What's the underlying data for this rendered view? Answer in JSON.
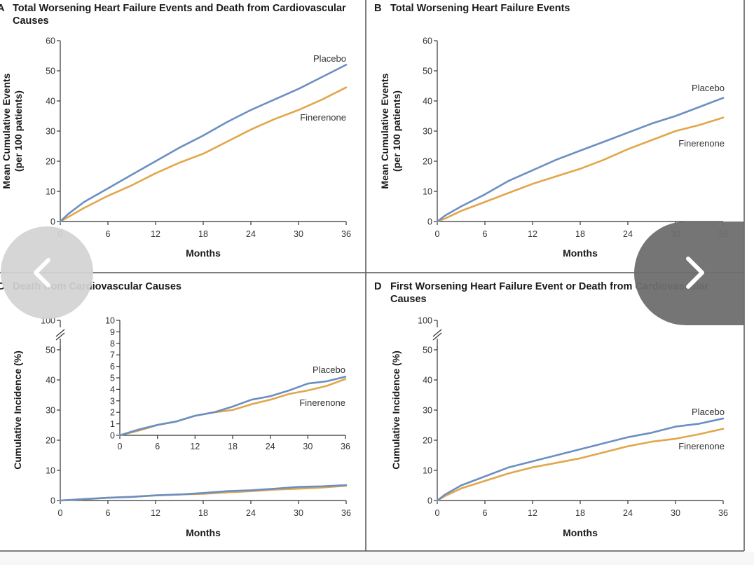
{
  "chart_data": [
    {
      "panel": "A",
      "type": "line",
      "title_lines": [
        "Total Worsening Heart Failure Events and Death from Cardiovascular",
        "Causes"
      ],
      "xlabel": "Months",
      "ylabel_lines": [
        "Mean Cumulative Events",
        "(per 100 patients)"
      ],
      "xticks": [
        "0",
        "6",
        "12",
        "18",
        "24",
        "30",
        "36"
      ],
      "yticks": [
        "0",
        "10",
        "20",
        "30",
        "40",
        "50",
        "60"
      ],
      "xlim": [
        0,
        36
      ],
      "ylim": [
        0,
        60
      ],
      "series": [
        {
          "name": "Placebo",
          "color": "#6b8fc2",
          "x": [
            0,
            1,
            3,
            6,
            9,
            12,
            15,
            18,
            21,
            24,
            27,
            30,
            33,
            36
          ],
          "y": [
            0,
            2.5,
            6.5,
            11,
            15.5,
            20,
            24.5,
            28.5,
            33,
            37,
            40.5,
            44,
            48,
            52
          ]
        },
        {
          "name": "Finerenone",
          "color": "#e2a64b",
          "x": [
            0,
            1,
            3,
            6,
            9,
            12,
            15,
            18,
            21,
            24,
            27,
            30,
            33,
            36
          ],
          "y": [
            0,
            1.5,
            4.5,
            8.5,
            12,
            16,
            19.5,
            22.5,
            26.5,
            30.5,
            34,
            37,
            40.5,
            44.5
          ]
        }
      ]
    },
    {
      "panel": "B",
      "type": "line",
      "title_lines": [
        "Total Worsening Heart Failure Events"
      ],
      "xlabel": "Months",
      "ylabel_lines": [
        "Mean Cumulative Events",
        "(per 100 patients)"
      ],
      "xticks": [
        "0",
        "6",
        "12",
        "18",
        "24",
        "30",
        "36"
      ],
      "yticks": [
        "0",
        "10",
        "20",
        "30",
        "40",
        "50",
        "60"
      ],
      "xlim": [
        0,
        36
      ],
      "ylim": [
        0,
        60
      ],
      "series": [
        {
          "name": "Placebo",
          "color": "#6b8fc2",
          "x": [
            0,
            1,
            3,
            6,
            9,
            12,
            15,
            18,
            21,
            24,
            27,
            30,
            33,
            36
          ],
          "y": [
            0,
            2,
            5,
            9,
            13.5,
            17,
            20.5,
            23.5,
            26.5,
            29.5,
            32.5,
            35,
            38,
            41
          ]
        },
        {
          "name": "Finerenone",
          "color": "#e2a64b",
          "x": [
            0,
            1,
            3,
            6,
            9,
            12,
            15,
            18,
            21,
            24,
            27,
            30,
            33,
            36
          ],
          "y": [
            0,
            1,
            3.5,
            6.5,
            9.5,
            12.5,
            15,
            17.5,
            20.5,
            24,
            27,
            30,
            32,
            34.5
          ]
        }
      ]
    },
    {
      "panel": "C",
      "type": "line",
      "title_lines": [
        "Death from Cardiovascular Causes"
      ],
      "xlabel": "Months",
      "ylabel_lines": [
        "Cumulative Incidence (%)"
      ],
      "xticks": [
        "0",
        "6",
        "12",
        "18",
        "24",
        "30",
        "36"
      ],
      "yticks": [
        "0",
        "10",
        "20",
        "30",
        "40",
        "50"
      ],
      "ytop_label": "100",
      "xlim": [
        0,
        36
      ],
      "ylim": [
        0,
        50
      ],
      "series": [
        {
          "name": "Placebo",
          "color": "#6b8fc2",
          "x": [
            0,
            3,
            6,
            9,
            12,
            15,
            18,
            21,
            24,
            27,
            30,
            33,
            36
          ],
          "y": [
            0,
            0.5,
            0.9,
            1.2,
            1.7,
            2.0,
            2.5,
            3.1,
            3.4,
            3.9,
            4.5,
            4.7,
            5.1
          ]
        },
        {
          "name": "Finerenone",
          "color": "#e2a64b",
          "x": [
            0,
            3,
            6,
            9,
            12,
            15,
            18,
            21,
            24,
            27,
            30,
            33,
            36
          ],
          "y": [
            0,
            0.4,
            0.9,
            1.2,
            1.7,
            2.0,
            2.2,
            2.7,
            3.1,
            3.6,
            3.9,
            4.3,
            4.9
          ]
        }
      ],
      "inset": {
        "xticks": [
          "0",
          "6",
          "12",
          "18",
          "24",
          "30",
          "36"
        ],
        "yticks": [
          "0",
          "1",
          "2",
          "3",
          "4",
          "5",
          "6",
          "7",
          "8",
          "9",
          "10"
        ],
        "xlim": [
          0,
          36
        ],
        "ylim": [
          0,
          10
        ]
      }
    },
    {
      "panel": "D",
      "type": "line",
      "title_lines": [
        "First Worsening Heart Failure Event or Death from Cardiovascular",
        "Causes"
      ],
      "xlabel": "Months",
      "ylabel_lines": [
        "Cumulative Incidence (%)"
      ],
      "xticks": [
        "0",
        "6",
        "12",
        "18",
        "24",
        "30",
        "36"
      ],
      "yticks": [
        "0",
        "10",
        "20",
        "30",
        "40",
        "50"
      ],
      "ytop_label": "100",
      "xlim": [
        0,
        36
      ],
      "ylim": [
        0,
        50
      ],
      "series": [
        {
          "name": "Placebo",
          "color": "#6b8fc2",
          "x": [
            0,
            1,
            3,
            6,
            9,
            12,
            15,
            18,
            21,
            24,
            27,
            30,
            33,
            36
          ],
          "y": [
            0,
            2,
            5,
            8,
            11,
            13,
            15,
            17,
            19,
            21,
            22.5,
            24.5,
            25.5,
            27.2
          ]
        },
        {
          "name": "Finerenone",
          "color": "#e2a64b",
          "x": [
            0,
            1,
            3,
            6,
            9,
            12,
            15,
            18,
            21,
            24,
            27,
            30,
            33,
            36
          ],
          "y": [
            0,
            1.5,
            4,
            6.5,
            9,
            11,
            12.5,
            14,
            16,
            18,
            19.5,
            20.5,
            22,
            23.8
          ]
        }
      ]
    }
  ],
  "navigation": {
    "prev_icon": "chevron-left-icon",
    "next_icon": "chevron-right-icon"
  }
}
